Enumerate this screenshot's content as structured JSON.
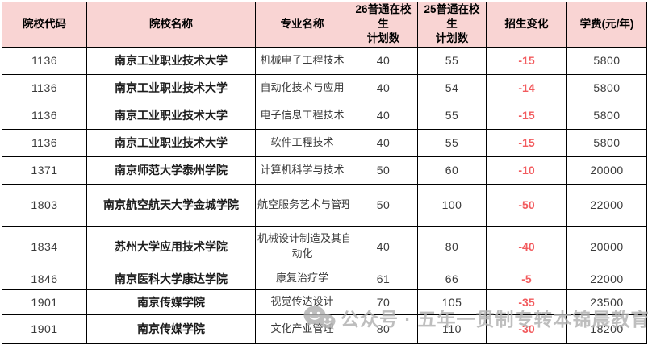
{
  "table": {
    "headers": [
      {
        "label": "院校代码"
      },
      {
        "label": "院校名称"
      },
      {
        "label": "专业名称"
      },
      {
        "label": "26普通在校生\n计划数"
      },
      {
        "label": "25普通在校生\n计划数"
      },
      {
        "label": "招生变化"
      },
      {
        "label": "学费(元/年)"
      }
    ],
    "rows": [
      {
        "code": "1136",
        "college": "南京工业职业技术大学",
        "major": "机械电子工程技术",
        "plan26": "40",
        "plan25": "55",
        "change": "-15",
        "fee": "5800"
      },
      {
        "code": "1136",
        "college": "南京工业职业技术大学",
        "major": "自动化技术与应用",
        "plan26": "40",
        "plan25": "54",
        "change": "-14",
        "fee": "5800"
      },
      {
        "code": "1136",
        "college": "南京工业职业技术大学",
        "major": "电子信息工程技术",
        "plan26": "40",
        "plan25": "55",
        "change": "-15",
        "fee": "5800"
      },
      {
        "code": "1136",
        "college": "南京工业职业技术大学",
        "major": "软件工程技术",
        "plan26": "40",
        "plan25": "55",
        "change": "-15",
        "fee": "5800"
      },
      {
        "code": "1371",
        "college": "南京师范大学泰州学院",
        "major": "计算机科学与技术",
        "plan26": "50",
        "plan25": "60",
        "change": "-10",
        "fee": "20000"
      },
      {
        "code": "1803",
        "college": "南京航空航天大学金城学院",
        "major": "航空服务艺术与管理",
        "plan26": "50",
        "plan25": "100",
        "change": "-50",
        "fee": "22000"
      },
      {
        "code": "1834",
        "college": "苏州大学应用技术学院",
        "major": "机械设计制造及其自\n动化",
        "plan26": "40",
        "plan25": "80",
        "change": "-40",
        "fee": "20000"
      },
      {
        "code": "1846",
        "college": "南京医科大学康达学院",
        "major": "康复治疗学",
        "plan26": "61",
        "plan25": "66",
        "change": "-5",
        "fee": "22000"
      },
      {
        "code": "1901",
        "college": "南京传媒学院",
        "major": "视觉传达设计",
        "plan26": "70",
        "plan25": "105",
        "change": "-35",
        "fee": "23500"
      },
      {
        "code": "1901",
        "college": "南京传媒学院",
        "major": "文化产业管理",
        "plan26": "80",
        "plan25": "110",
        "change": "-30",
        "fee": "18200"
      }
    ]
  },
  "watermark": {
    "text": "公众号 · 五年一贯制专转本锦晨教育",
    "icon": "wechat-icon"
  },
  "colors": {
    "header_bg": "#f9d4d3",
    "change_negative": "#f25b5e",
    "border": "#000000",
    "watermark": "#b0b0b0"
  }
}
